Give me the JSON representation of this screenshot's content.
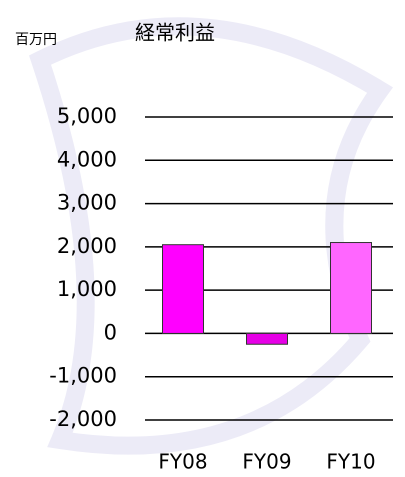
{
  "chart_data": {
    "type": "bar",
    "title": "経常利益",
    "unit_label": "百万円",
    "categories": [
      "FY08",
      "FY09",
      "FY10"
    ],
    "values": [
      2050,
      -250,
      2100
    ],
    "colors": [
      "#ff00ff",
      "#e600e6",
      "#ff66ff"
    ],
    "ylim": [
      -2000,
      5000
    ],
    "yticks": [
      {
        "value": -2000,
        "label": "-2,000"
      },
      {
        "value": -1000,
        "label": "-1,000"
      },
      0,
      {
        "value": 1000,
        "label": "1,000"
      },
      {
        "value": 2000,
        "label": "2,000"
      },
      {
        "value": 3000,
        "label": "3,000"
      },
      {
        "value": 4000,
        "label": "4,000"
      },
      {
        "value": 5000,
        "label": "5,000"
      }
    ],
    "grid": true
  }
}
